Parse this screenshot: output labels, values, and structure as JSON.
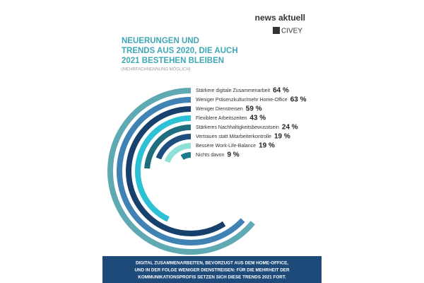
{
  "header": {
    "brand": "news aktuell",
    "partner": "CIVEY"
  },
  "chart_data": {
    "type": "radial-bar",
    "title": [
      "NEUERUNGEN UND",
      "TRENDS AUS 2020, DIE AUCH",
      "2021 BESTEHEN BLEIBEN"
    ],
    "subtitle": "(MEHRFACHNENNUNG MÖGLICH)",
    "categories": [
      "Stärkere digitale Zusammenarbeit",
      "Weniger Präsenzkultur/mehr Home-Office",
      "Weniger Dienstreisen",
      "Flexiblere Arbeitszeiten",
      "Stärkeres Nachhaltigkeitsbewusstsein",
      "Vertrauen statt Mitarbeiterkontrolle",
      "Bessere Work-Life-Balance",
      "Nichts davon"
    ],
    "values": [
      64,
      63,
      59,
      43,
      24,
      19,
      19,
      9
    ],
    "value_labels": [
      "64 %",
      "63 %",
      "59 %",
      "43 %",
      "24 %",
      "19 %",
      "19 %",
      "9 %"
    ],
    "colors": [
      "#5fa9b3",
      "#3f82b3",
      "#17406d",
      "#2cc1d4",
      "#1f6e7d",
      "#1d4e7e",
      "#8fe0d8",
      "#1d7c89"
    ]
  },
  "footer": {
    "lines": [
      "DIGITAL ZUSAMMENARBEITEN, BEVORZUGT AUS DEM HOME-OFFICE,",
      "UND IN DER FOLGE WENIGER DIENSTREISEN: FÜR DIE MEHRHEIT DER",
      "KOMMUNIKATIONSPROFIS SETZEN SICH DIESE TRENDS 2021 FORT."
    ]
  }
}
